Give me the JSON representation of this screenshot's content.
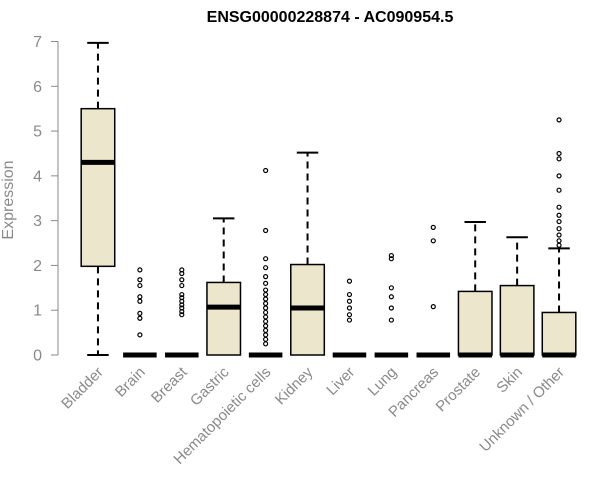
{
  "chart_data": {
    "type": "box",
    "title": "ENSG00000228874 - AC090954.5",
    "ylabel": "Expression",
    "xlabel": "",
    "ylim": [
      0,
      7
    ],
    "yticks": [
      0,
      1,
      2,
      3,
      4,
      5,
      6,
      7
    ],
    "grid": false,
    "box_color": "#ece6cc",
    "categories": [
      "Bladder",
      "Brain",
      "Breast",
      "Gastric",
      "Hematopoietic cells",
      "Kidney",
      "Liver",
      "Lung",
      "Pancreas",
      "Prostate",
      "Skin",
      "Unknown / Other"
    ],
    "boxes": [
      {
        "category": "Bladder",
        "q1": 1.98,
        "median": 4.3,
        "q3": 5.5,
        "whisker_low": 0.0,
        "whisker_high": 6.97,
        "outliers": []
      },
      {
        "category": "Brain",
        "q1": 0.0,
        "median": 0.0,
        "q3": 0.0,
        "whisker_low": 0.0,
        "whisker_high": 0.0,
        "outliers": [
          0.45,
          0.82,
          0.93,
          1.2,
          1.3,
          1.55,
          1.68,
          1.9
        ]
      },
      {
        "category": "Breast",
        "q1": 0.0,
        "median": 0.0,
        "q3": 0.0,
        "whisker_low": 0.0,
        "whisker_high": 0.0,
        "outliers": [
          0.9,
          0.97,
          1.05,
          1.12,
          1.2,
          1.28,
          1.35,
          1.55,
          1.68,
          1.82,
          1.9
        ]
      },
      {
        "category": "Gastric",
        "q1": 0.0,
        "median": 1.07,
        "q3": 1.62,
        "whisker_low": 0.0,
        "whisker_high": 3.05,
        "outliers": []
      },
      {
        "category": "Hematopoietic cells",
        "q1": 0.0,
        "median": 0.0,
        "q3": 0.0,
        "whisker_low": 0.0,
        "whisker_high": 0.0,
        "outliers": [
          0.25,
          0.35,
          0.45,
          0.55,
          0.65,
          0.75,
          0.85,
          0.95,
          1.05,
          1.15,
          1.25,
          1.35,
          1.45,
          1.6,
          1.75,
          1.95,
          2.15,
          2.78,
          4.12
        ]
      },
      {
        "category": "Kidney",
        "q1": 0.0,
        "median": 1.05,
        "q3": 2.02,
        "whisker_low": 0.0,
        "whisker_high": 4.52,
        "outliers": []
      },
      {
        "category": "Liver",
        "q1": 0.0,
        "median": 0.0,
        "q3": 0.0,
        "whisker_low": 0.0,
        "whisker_high": 0.0,
        "outliers": [
          0.78,
          0.9,
          1.05,
          1.2,
          1.35,
          1.65
        ]
      },
      {
        "category": "Lung",
        "q1": 0.0,
        "median": 0.0,
        "q3": 0.0,
        "whisker_low": 0.0,
        "whisker_high": 0.0,
        "outliers": [
          0.78,
          1.05,
          1.3,
          1.5,
          2.15,
          2.22
        ]
      },
      {
        "category": "Pancreas",
        "q1": 0.0,
        "median": 0.0,
        "q3": 0.0,
        "whisker_low": 0.0,
        "whisker_high": 0.0,
        "outliers": [
          1.08,
          2.55,
          2.85
        ]
      },
      {
        "category": "Prostate",
        "q1": 0.0,
        "median": 0.0,
        "q3": 1.42,
        "whisker_low": 0.0,
        "whisker_high": 2.97,
        "outliers": []
      },
      {
        "category": "Skin",
        "q1": 0.0,
        "median": 0.0,
        "q3": 1.55,
        "whisker_low": 0.0,
        "whisker_high": 2.63,
        "outliers": []
      },
      {
        "category": "Unknown / Other",
        "q1": 0.0,
        "median": 0.0,
        "q3": 0.95,
        "whisker_low": 0.0,
        "whisker_high": 2.38,
        "outliers": [
          2.45,
          2.55,
          2.68,
          2.82,
          2.98,
          3.12,
          3.3,
          3.68,
          4.0,
          4.38,
          4.5,
          5.25
        ]
      }
    ]
  }
}
